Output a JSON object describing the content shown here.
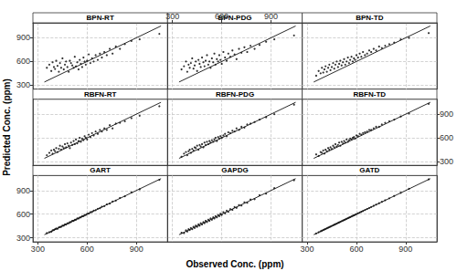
{
  "xlabel": "Observed Conc. (ppm)",
  "ylabel": "Predicted Conc. (ppm)",
  "chart_data": [
    {
      "type": "scatter",
      "title": "BPN-RT",
      "grid": true,
      "tick_labels": "y",
      "xlim": [
        270,
        1090
      ],
      "ylim": [
        250,
        1090
      ],
      "xticks": [
        300,
        600,
        900
      ],
      "yticks": [
        300,
        600,
        900
      ],
      "line": {
        "x": [
          340,
          1050
        ],
        "y": [
          340,
          1050
        ]
      },
      "x": [
        355,
        370,
        382,
        390,
        398,
        405,
        412,
        420,
        428,
        435,
        442,
        450,
        458,
        465,
        472,
        480,
        488,
        495,
        502,
        510,
        518,
        525,
        532,
        540,
        548,
        555,
        562,
        570,
        578,
        585,
        592,
        600,
        610,
        620,
        630,
        640,
        652,
        665,
        678,
        690,
        705,
        720,
        738,
        755,
        775,
        800,
        830,
        870,
        920,
        1040
      ],
      "values": [
        520,
        560,
        480,
        590,
        530,
        505,
        610,
        545,
        470,
        580,
        520,
        640,
        500,
        560,
        600,
        530,
        470,
        610,
        580,
        550,
        520,
        660,
        540,
        590,
        500,
        620,
        570,
        530,
        650,
        600,
        560,
        610,
        690,
        580,
        640,
        600,
        680,
        620,
        700,
        650,
        720,
        680,
        760,
        700,
        790,
        760,
        820,
        860,
        880,
        950
      ]
    },
    {
      "type": "scatter",
      "title": "BPN-PDG",
      "grid": true,
      "tick_labels": "x",
      "xlim": [
        270,
        1090
      ],
      "ylim": [
        250,
        1090
      ],
      "xticks": [
        300,
        600,
        900
      ],
      "yticks": [
        300,
        600,
        900
      ],
      "line": {
        "x": [
          340,
          1050
        ],
        "y": [
          340,
          1050
        ]
      },
      "x": [
        355,
        370,
        382,
        390,
        398,
        405,
        412,
        420,
        428,
        435,
        442,
        450,
        458,
        465,
        472,
        480,
        488,
        495,
        502,
        510,
        518,
        525,
        532,
        540,
        548,
        555,
        562,
        570,
        578,
        585,
        592,
        600,
        610,
        620,
        630,
        640,
        652,
        665,
        678,
        690,
        705,
        720,
        738,
        755,
        775,
        800,
        830,
        870,
        920,
        1040
      ],
      "values": [
        500,
        540,
        600,
        470,
        560,
        520,
        580,
        640,
        510,
        550,
        600,
        480,
        620,
        570,
        530,
        650,
        590,
        540,
        610,
        680,
        560,
        600,
        520,
        640,
        590,
        700,
        560,
        630,
        600,
        680,
        620,
        570,
        720,
        650,
        610,
        700,
        660,
        740,
        690,
        630,
        760,
        710,
        780,
        720,
        800,
        760,
        810,
        850,
        880,
        930
      ]
    },
    {
      "type": "scatter",
      "title": "BPN-TD",
      "grid": true,
      "tick_labels": false,
      "xlim": [
        270,
        1090
      ],
      "ylim": [
        250,
        1090
      ],
      "xticks": [
        300,
        600,
        900
      ],
      "yticks": [
        300,
        600,
        900
      ],
      "line": {
        "x": [
          340,
          1050
        ],
        "y": [
          340,
          1050
        ]
      },
      "x": [
        355,
        370,
        382,
        390,
        398,
        405,
        412,
        420,
        428,
        435,
        442,
        450,
        458,
        465,
        472,
        480,
        488,
        495,
        502,
        510,
        518,
        525,
        532,
        540,
        548,
        555,
        562,
        570,
        578,
        585,
        592,
        600,
        610,
        620,
        630,
        640,
        652,
        665,
        678,
        690,
        705,
        720,
        738,
        755,
        775,
        800,
        830,
        870,
        920,
        1040
      ],
      "values": [
        420,
        480,
        450,
        520,
        460,
        500,
        540,
        470,
        520,
        560,
        490,
        530,
        580,
        510,
        560,
        600,
        530,
        570,
        610,
        550,
        590,
        630,
        560,
        600,
        650,
        580,
        620,
        660,
        600,
        640,
        620,
        680,
        650,
        700,
        660,
        720,
        680,
        700,
        740,
        720,
        760,
        740,
        790,
        770,
        800,
        820,
        840,
        880,
        900,
        960
      ]
    },
    {
      "type": "scatter",
      "title": "RBFN-RT",
      "grid": true,
      "tick_labels": false,
      "xlim": [
        270,
        1090
      ],
      "ylim": [
        250,
        1090
      ],
      "xticks": [
        300,
        600,
        900
      ],
      "yticks": [
        300,
        600,
        900
      ],
      "line": {
        "x": [
          340,
          1050
        ],
        "y": [
          340,
          1050
        ]
      },
      "x": [
        355,
        370,
        382,
        390,
        398,
        405,
        412,
        420,
        428,
        435,
        442,
        450,
        458,
        465,
        472,
        480,
        488,
        495,
        502,
        510,
        518,
        525,
        532,
        540,
        548,
        555,
        562,
        570,
        578,
        585,
        592,
        600,
        610,
        620,
        630,
        640,
        652,
        665,
        678,
        690,
        705,
        720,
        738,
        755,
        775,
        800,
        830,
        870,
        920,
        1040
      ],
      "values": [
        380,
        410,
        440,
        400,
        450,
        430,
        470,
        420,
        460,
        500,
        450,
        490,
        470,
        520,
        480,
        530,
        500,
        470,
        540,
        510,
        560,
        520,
        580,
        530,
        560,
        600,
        550,
        590,
        570,
        620,
        600,
        580,
        640,
        610,
        660,
        630,
        680,
        650,
        700,
        680,
        720,
        700,
        760,
        720,
        780,
        790,
        810,
        850,
        880,
        1000
      ]
    },
    {
      "type": "scatter",
      "title": "RBFN-PDG",
      "grid": true,
      "tick_labels": false,
      "xlim": [
        270,
        1090
      ],
      "ylim": [
        250,
        1090
      ],
      "xticks": [
        300,
        600,
        900
      ],
      "yticks": [
        300,
        600,
        900
      ],
      "line": {
        "x": [
          340,
          1050
        ],
        "y": [
          340,
          1050
        ]
      },
      "x": [
        355,
        370,
        382,
        390,
        398,
        405,
        412,
        420,
        428,
        435,
        442,
        450,
        458,
        465,
        472,
        480,
        488,
        495,
        502,
        510,
        518,
        525,
        532,
        540,
        548,
        555,
        562,
        570,
        578,
        585,
        592,
        600,
        610,
        620,
        630,
        640,
        652,
        665,
        678,
        690,
        705,
        720,
        738,
        755,
        775,
        800,
        830,
        870,
        920,
        1040
      ],
      "values": [
        360,
        400,
        420,
        380,
        430,
        450,
        410,
        460,
        440,
        480,
        470,
        500,
        450,
        510,
        490,
        520,
        480,
        540,
        510,
        550,
        520,
        560,
        540,
        570,
        550,
        580,
        600,
        560,
        610,
        590,
        620,
        600,
        630,
        650,
        620,
        670,
        660,
        690,
        680,
        720,
        700,
        740,
        730,
        770,
        780,
        800,
        830,
        860,
        900,
        1020
      ]
    },
    {
      "type": "scatter",
      "title": "RBFN-TD",
      "grid": true,
      "tick_labels": "y",
      "xlim": [
        270,
        1090
      ],
      "ylim": [
        250,
        1090
      ],
      "xticks": [
        300,
        600,
        900
      ],
      "yticks": [
        300,
        600,
        900
      ],
      "line": {
        "x": [
          340,
          1050
        ],
        "y": [
          340,
          1050
        ]
      },
      "x": [
        355,
        370,
        382,
        390,
        398,
        405,
        412,
        420,
        428,
        435,
        442,
        450,
        458,
        465,
        472,
        480,
        488,
        495,
        502,
        510,
        518,
        525,
        532,
        540,
        548,
        555,
        562,
        570,
        578,
        585,
        592,
        600,
        610,
        620,
        630,
        640,
        652,
        665,
        678,
        690,
        705,
        720,
        738,
        755,
        775,
        800,
        830,
        870,
        920,
        1040
      ],
      "values": [
        390,
        370,
        420,
        410,
        440,
        400,
        450,
        430,
        470,
        450,
        480,
        460,
        500,
        480,
        520,
        490,
        510,
        540,
        500,
        550,
        530,
        560,
        540,
        580,
        550,
        570,
        590,
        580,
        600,
        610,
        590,
        630,
        620,
        650,
        640,
        660,
        670,
        680,
        700,
        700,
        720,
        740,
        740,
        770,
        790,
        810,
        830,
        870,
        910,
        1030
      ]
    },
    {
      "type": "scatter",
      "title": "GART",
      "grid": true,
      "tick_labels": true,
      "xlim": [
        270,
        1090
      ],
      "ylim": [
        250,
        1090
      ],
      "xticks": [
        300,
        600,
        900
      ],
      "yticks": [
        300,
        600,
        900
      ],
      "line": {
        "x": [
          340,
          1050
        ],
        "y": [
          340,
          1050
        ]
      },
      "x": [
        355,
        370,
        382,
        390,
        398,
        405,
        412,
        420,
        428,
        435,
        442,
        450,
        458,
        465,
        472,
        480,
        488,
        495,
        502,
        510,
        518,
        525,
        532,
        540,
        548,
        555,
        562,
        570,
        578,
        585,
        592,
        600,
        610,
        620,
        630,
        640,
        652,
        665,
        678,
        690,
        705,
        720,
        738,
        755,
        775,
        800,
        830,
        870,
        920,
        1040
      ],
      "values": [
        360,
        372,
        378,
        395,
        400,
        410,
        418,
        415,
        432,
        438,
        440,
        455,
        455,
        470,
        468,
        484,
        485,
        498,
        500,
        515,
        515,
        528,
        530,
        545,
        545,
        558,
        560,
        574,
        575,
        590,
        590,
        604,
        608,
        625,
        628,
        645,
        650,
        668,
        675,
        695,
        702,
        724,
        735,
        760,
        772,
        805,
        826,
        875,
        915,
        1035
      ]
    },
    {
      "type": "scatter",
      "title": "GAPDG",
      "grid": true,
      "tick_labels": false,
      "xlim": [
        270,
        1090
      ],
      "ylim": [
        250,
        1090
      ],
      "xticks": [
        300,
        600,
        900
      ],
      "yticks": [
        300,
        600,
        900
      ],
      "line": {
        "x": [
          340,
          1050
        ],
        "y": [
          340,
          1050
        ]
      },
      "x": [
        355,
        370,
        382,
        390,
        398,
        405,
        412,
        420,
        428,
        435,
        442,
        450,
        458,
        465,
        472,
        480,
        488,
        495,
        502,
        510,
        518,
        525,
        532,
        540,
        548,
        555,
        562,
        570,
        578,
        585,
        592,
        600,
        610,
        620,
        630,
        640,
        652,
        665,
        678,
        690,
        705,
        720,
        738,
        755,
        775,
        800,
        830,
        870,
        920,
        1040
      ],
      "values": [
        365,
        360,
        395,
        380,
        410,
        400,
        425,
        410,
        440,
        425,
        455,
        440,
        470,
        455,
        485,
        470,
        500,
        485,
        515,
        500,
        530,
        515,
        545,
        530,
        560,
        545,
        575,
        560,
        590,
        575,
        605,
        590,
        625,
        610,
        645,
        630,
        665,
        655,
        690,
        680,
        715,
        710,
        750,
        745,
        785,
        790,
        840,
        860,
        930,
        1030
      ]
    },
    {
      "type": "scatter",
      "title": "GATD",
      "grid": true,
      "tick_labels": "x",
      "xlim": [
        270,
        1090
      ],
      "ylim": [
        250,
        1090
      ],
      "xticks": [
        300,
        600,
        900
      ],
      "yticks": [
        300,
        600,
        900
      ],
      "line": {
        "x": [
          340,
          1050
        ],
        "y": [
          340,
          1050
        ]
      },
      "x": [
        355,
        370,
        382,
        390,
        398,
        405,
        412,
        420,
        428,
        435,
        442,
        450,
        458,
        465,
        472,
        480,
        488,
        495,
        502,
        510,
        518,
        525,
        532,
        540,
        548,
        555,
        562,
        570,
        578,
        585,
        592,
        600,
        610,
        620,
        630,
        640,
        652,
        665,
        678,
        690,
        705,
        720,
        738,
        755,
        775,
        800,
        830,
        870,
        920,
        1040
      ],
      "values": [
        356,
        371,
        383,
        391,
        399,
        406,
        413,
        421,
        429,
        436,
        443,
        451,
        459,
        466,
        473,
        481,
        489,
        496,
        503,
        511,
        519,
        526,
        533,
        541,
        549,
        556,
        563,
        571,
        579,
        586,
        593,
        601,
        611,
        621,
        631,
        641,
        653,
        666,
        679,
        691,
        706,
        721,
        739,
        756,
        776,
        801,
        831,
        871,
        921,
        1041
      ]
    }
  ]
}
